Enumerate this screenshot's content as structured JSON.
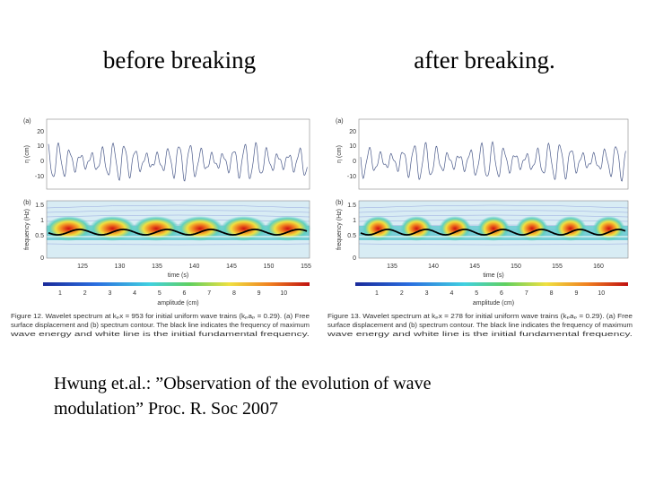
{
  "header": {
    "left": "before breaking",
    "right": "after breaking."
  },
  "figures": [
    {
      "panel_a_label": "(a)",
      "panel_a_ylabel": "η (cm)",
      "panel_a_yticks": [
        20,
        10,
        0,
        -10
      ],
      "panel_b_label": "(b)",
      "panel_b_ylabel": "frequency (Hz)",
      "panel_b_yticks": [
        1.5,
        1,
        0.5,
        0
      ],
      "xticks": [
        125,
        130,
        135,
        140,
        145,
        150,
        155
      ],
      "xlabel": "time (s)",
      "colorbar_ticks": [
        1,
        2,
        3,
        4,
        5,
        6,
        7,
        8,
        9,
        10
      ],
      "colorbar_label": "amplitude (cm)",
      "caption": [
        "Figure 12. Wavelet spectrum at kₚx = 953 for initial uniform wave trains (kₚaₚ = 0.29). (a) Free",
        "surface displacement and (b) spectrum contour. The black line indicates the frequency of maximum",
        "wave energy and white line is the initial fundamental frequency."
      ]
    },
    {
      "panel_a_label": "(a)",
      "panel_a_ylabel": "η (cm)",
      "panel_a_yticks": [
        20,
        10,
        0,
        -10
      ],
      "panel_b_label": "(b)",
      "panel_b_ylabel": "frequency (Hz)",
      "panel_b_yticks": [
        1.5,
        1,
        0.5,
        0
      ],
      "xticks": [
        135,
        140,
        145,
        150,
        155,
        160
      ],
      "xlabel": "time (s)",
      "colorbar_ticks": [
        1,
        2,
        3,
        4,
        5,
        6,
        7,
        8,
        9,
        10
      ],
      "colorbar_label": "amplitude (cm)",
      "caption": [
        "Figure 13. Wavelet spectrum at kₚx = 278 for initial uniform wave trains (kₚaₚ = 0.29). (a) Free",
        "surface displacement and (b) spectrum contour. The black line indicates the frequency of maximum",
        "wave energy and white line is the initial fundamental frequency."
      ]
    }
  ],
  "citation": [
    "Hwung et.al.: ”Observation of the evolution of wave",
    "modulation”  Proc. R. Soc 2007"
  ]
}
